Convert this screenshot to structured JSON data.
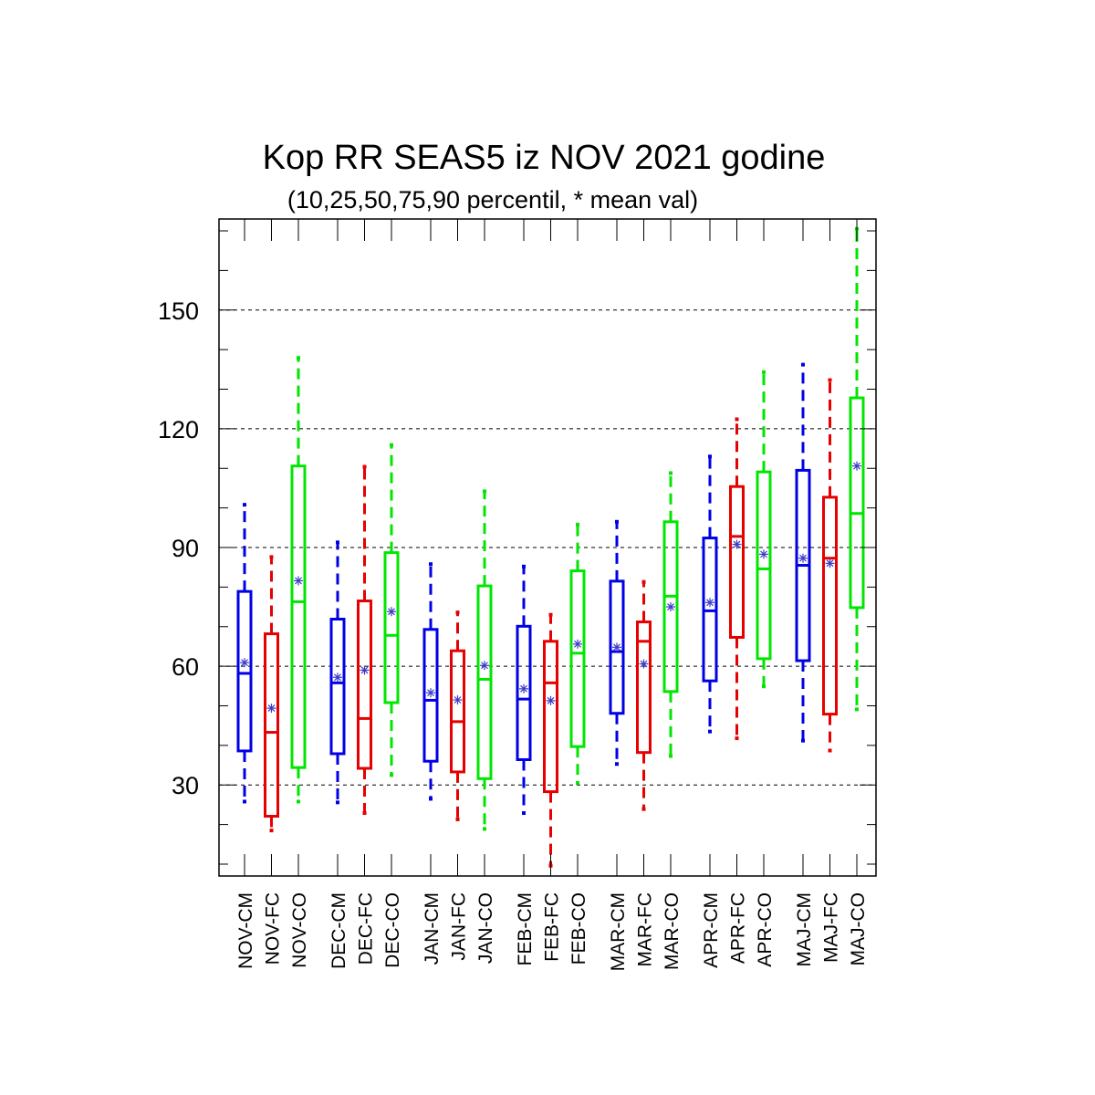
{
  "chart_data": {
    "type": "boxplot",
    "title": "Kop RR SEAS5 iz NOV 2021 godine",
    "subtitle": "(10,25,50,75,90 percentil, * mean val)",
    "ylim": [
      7,
      173
    ],
    "yticks": [
      30,
      60,
      90,
      120,
      150
    ],
    "grid": "horizontal dashed",
    "series_colors": {
      "CM": "#0000e6",
      "FC": "#e60000",
      "CO": "#00e600"
    },
    "mean_marker_color": "#3c3cc8",
    "categories": [
      "NOV-CM",
      "NOV-FC",
      "NOV-CO",
      "DEC-CM",
      "DEC-FC",
      "DEC-CO",
      "JAN-CM",
      "JAN-FC",
      "JAN-CO",
      "FEB-CM",
      "FEB-FC",
      "FEB-CO",
      "MAR-CM",
      "MAR-FC",
      "MAR-CO",
      "APR-CM",
      "APR-FC",
      "APR-CO",
      "MAJ-CM",
      "MAJ-FC",
      "MAJ-CO"
    ],
    "boxes": [
      {
        "label": "NOV-CM",
        "series": "CM",
        "p10": 25.8,
        "p25": 38.6,
        "p50": 58.2,
        "p75": 78.9,
        "p90": 100.8,
        "mean": 60.9
      },
      {
        "label": "NOV-FC",
        "series": "FC",
        "p10": 18.5,
        "p25": 22.1,
        "p50": 43.3,
        "p75": 68.2,
        "p90": 87.6,
        "mean": 49.4
      },
      {
        "label": "NOV-CO",
        "series": "CO",
        "p10": 25.8,
        "p25": 34.4,
        "p50": 76.3,
        "p75": 110.6,
        "p90": 137.9,
        "mean": 81.6
      },
      {
        "label": "DEC-CM",
        "series": "CM",
        "p10": 25.6,
        "p25": 37.9,
        "p50": 55.8,
        "p75": 71.9,
        "p90": 91.3,
        "mean": 57.2
      },
      {
        "label": "DEC-FC",
        "series": "FC",
        "p10": 22.9,
        "p25": 34.2,
        "p50": 46.8,
        "p75": 76.5,
        "p90": 110.4,
        "mean": 59.0
      },
      {
        "label": "DEC-CO",
        "series": "CO",
        "p10": 32.5,
        "p25": 50.8,
        "p50": 67.8,
        "p75": 88.7,
        "p90": 115.9,
        "mean": 73.8
      },
      {
        "label": "JAN-CM",
        "series": "CM",
        "p10": 26.5,
        "p25": 36.0,
        "p50": 51.4,
        "p75": 69.3,
        "p90": 85.8,
        "mean": 53.3
      },
      {
        "label": "JAN-FC",
        "series": "FC",
        "p10": 21.3,
        "p25": 33.3,
        "p50": 46.0,
        "p75": 63.9,
        "p90": 73.6,
        "mean": 51.5
      },
      {
        "label": "JAN-CO",
        "series": "CO",
        "p10": 18.9,
        "p25": 31.6,
        "p50": 56.7,
        "p75": 80.3,
        "p90": 104.2,
        "mean": 60.2
      },
      {
        "label": "FEB-CM",
        "series": "CM",
        "p10": 22.9,
        "p25": 36.4,
        "p50": 51.7,
        "p75": 70.1,
        "p90": 85.2,
        "mean": 54.3
      },
      {
        "label": "FEB-FC",
        "series": "FC",
        "p10": 9.6,
        "p25": 28.3,
        "p50": 55.8,
        "p75": 66.3,
        "p90": 73.0,
        "mean": 51.3
      },
      {
        "label": "FEB-CO",
        "series": "CO",
        "p10": 30.5,
        "p25": 39.7,
        "p50": 63.3,
        "p75": 84.1,
        "p90": 95.8,
        "mean": 65.6
      },
      {
        "label": "MAR-CM",
        "series": "CM",
        "p10": 35.3,
        "p25": 48.1,
        "p50": 63.7,
        "p75": 81.5,
        "p90": 96.5,
        "mean": 64.8
      },
      {
        "label": "MAR-FC",
        "series": "FC",
        "p10": 23.9,
        "p25": 38.2,
        "p50": 66.3,
        "p75": 71.2,
        "p90": 81.3,
        "mean": 60.6
      },
      {
        "label": "MAR-CO",
        "series": "CO",
        "p10": 37.3,
        "p25": 53.6,
        "p50": 77.7,
        "p75": 96.5,
        "p90": 108.8,
        "mean": 75.0
      },
      {
        "label": "APR-CM",
        "series": "CM",
        "p10": 43.5,
        "p25": 56.3,
        "p50": 74.0,
        "p75": 92.4,
        "p90": 113.0,
        "mean": 76.1
      },
      {
        "label": "APR-FC",
        "series": "FC",
        "p10": 41.8,
        "p25": 67.3,
        "p50": 92.8,
        "p75": 105.4,
        "p90": 122.4,
        "mean": 90.8
      },
      {
        "label": "APR-CO",
        "series": "CO",
        "p10": 54.9,
        "p25": 61.9,
        "p50": 84.6,
        "p75": 109.1,
        "p90": 134.3,
        "mean": 88.3
      },
      {
        "label": "MAJ-CM",
        "series": "CM",
        "p10": 41.2,
        "p25": 61.4,
        "p50": 85.5,
        "p75": 109.5,
        "p90": 136.2,
        "mean": 87.3
      },
      {
        "label": "MAJ-FC",
        "series": "FC",
        "p10": 38.7,
        "p25": 47.9,
        "p50": 87.3,
        "p75": 102.7,
        "p90": 132.3,
        "mean": 86.0
      },
      {
        "label": "MAJ-CO",
        "series": "CO",
        "p10": 49.1,
        "p25": 74.8,
        "p50": 98.6,
        "p75": 127.8,
        "p90": 170.5,
        "mean": 110.6
      }
    ]
  }
}
